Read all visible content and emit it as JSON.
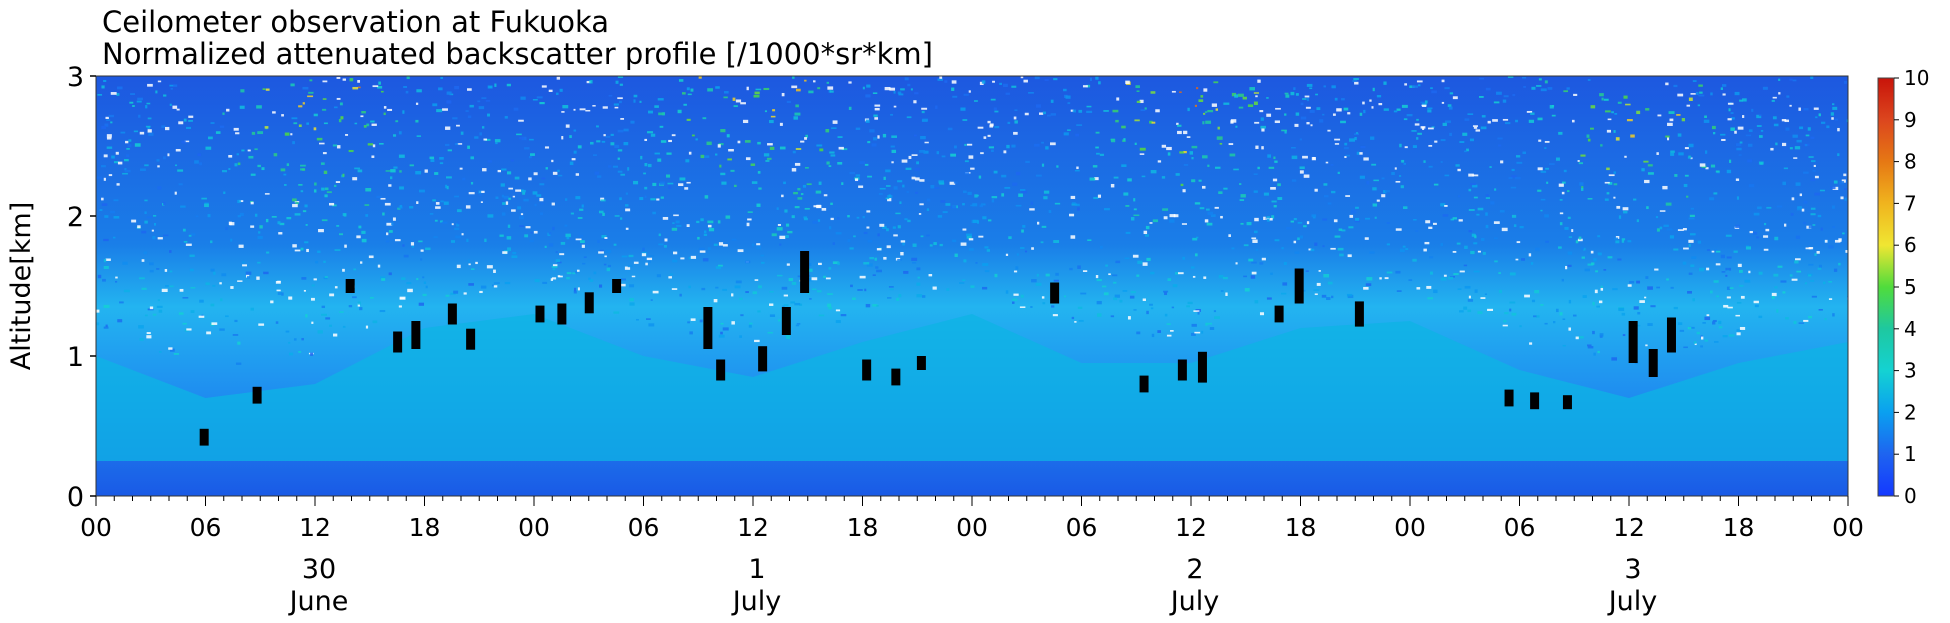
{
  "chart_data": {
    "type": "heatmap",
    "title": "Ceilometer observation at Fukuoka",
    "subtitle": "Normalized attenuated backscatter profile [/1000*sr*km]",
    "ylabel": "Altitude[km]",
    "ylim": [
      0,
      3
    ],
    "y_ticks": [
      "0",
      "1",
      "2",
      "3"
    ],
    "x_range_hours": [
      0,
      96
    ],
    "x_ticks": [
      "00",
      "06",
      "12",
      "18",
      "00",
      "06",
      "12",
      "18",
      "00",
      "06",
      "12",
      "18",
      "00",
      "06",
      "12",
      "18",
      "00"
    ],
    "day_labels": [
      {
        "day": "30",
        "month": "June",
        "hour": 12
      },
      {
        "day": "1",
        "month": "July",
        "hour": 36
      },
      {
        "day": "2",
        "month": "July",
        "hour": 60
      },
      {
        "day": "3",
        "month": "July",
        "hour": 84
      }
    ],
    "colorbar": {
      "min": 0,
      "max": 10,
      "ticks": [
        "0",
        "1",
        "2",
        "3",
        "4",
        "5",
        "6",
        "7",
        "8",
        "9",
        "10"
      ],
      "colors": [
        "#1438ff",
        "#1e64f0",
        "#0aa0f0",
        "#14d2d2",
        "#1ec8a0",
        "#50dc3c",
        "#f0e632",
        "#f0b41e",
        "#e67814",
        "#dc461e",
        "#c8140a"
      ]
    },
    "cloud_base_color": "#000000",
    "mixing_layer_top_km": [
      1.0,
      0.7,
      0.8,
      1.2,
      1.3,
      1.0,
      0.85,
      1.1,
      1.3,
      0.95,
      0.95,
      1.2,
      1.25,
      0.9,
      0.7,
      0.95,
      1.1
    ],
    "cloud_detections": [
      {
        "hour": 5.9,
        "alt_km": 0.42,
        "depth_km": 0.12
      },
      {
        "hour": 8.8,
        "alt_km": 0.72,
        "depth_km": 0.12
      },
      {
        "hour": 13.9,
        "alt_km": 1.5,
        "depth_km": 0.1
      },
      {
        "hour": 16.5,
        "alt_km": 1.1,
        "depth_km": 0.15
      },
      {
        "hour": 17.5,
        "alt_km": 1.15,
        "depth_km": 0.2
      },
      {
        "hour": 19.5,
        "alt_km": 1.3,
        "depth_km": 0.15
      },
      {
        "hour": 20.5,
        "alt_km": 1.12,
        "depth_km": 0.15
      },
      {
        "hour": 24.3,
        "alt_km": 1.3,
        "depth_km": 0.12
      },
      {
        "hour": 25.5,
        "alt_km": 1.3,
        "depth_km": 0.15
      },
      {
        "hour": 27.0,
        "alt_km": 1.38,
        "depth_km": 0.15
      },
      {
        "hour": 28.5,
        "alt_km": 1.5,
        "depth_km": 0.1
      },
      {
        "hour": 33.5,
        "alt_km": 1.2,
        "depth_km": 0.3
      },
      {
        "hour": 34.2,
        "alt_km": 0.9,
        "depth_km": 0.15
      },
      {
        "hour": 36.5,
        "alt_km": 0.98,
        "depth_km": 0.18
      },
      {
        "hour": 37.8,
        "alt_km": 1.25,
        "depth_km": 0.2
      },
      {
        "hour": 38.8,
        "alt_km": 1.6,
        "depth_km": 0.3
      },
      {
        "hour": 42.2,
        "alt_km": 0.9,
        "depth_km": 0.15
      },
      {
        "hour": 43.8,
        "alt_km": 0.85,
        "depth_km": 0.12
      },
      {
        "hour": 45.2,
        "alt_km": 0.95,
        "depth_km": 0.1
      },
      {
        "hour": 52.5,
        "alt_km": 1.45,
        "depth_km": 0.15
      },
      {
        "hour": 57.4,
        "alt_km": 0.8,
        "depth_km": 0.12
      },
      {
        "hour": 59.5,
        "alt_km": 0.9,
        "depth_km": 0.15
      },
      {
        "hour": 60.6,
        "alt_km": 0.92,
        "depth_km": 0.22
      },
      {
        "hour": 64.8,
        "alt_km": 1.3,
        "depth_km": 0.12
      },
      {
        "hour": 65.9,
        "alt_km": 1.5,
        "depth_km": 0.25
      },
      {
        "hour": 69.2,
        "alt_km": 1.3,
        "depth_km": 0.18
      },
      {
        "hour": 77.4,
        "alt_km": 0.7,
        "depth_km": 0.12
      },
      {
        "hour": 78.8,
        "alt_km": 0.68,
        "depth_km": 0.12
      },
      {
        "hour": 80.6,
        "alt_km": 0.67,
        "depth_km": 0.1
      },
      {
        "hour": 84.2,
        "alt_km": 1.1,
        "depth_km": 0.3
      },
      {
        "hour": 85.3,
        "alt_km": 0.95,
        "depth_km": 0.2
      },
      {
        "hour": 86.3,
        "alt_km": 1.15,
        "depth_km": 0.25
      }
    ]
  }
}
